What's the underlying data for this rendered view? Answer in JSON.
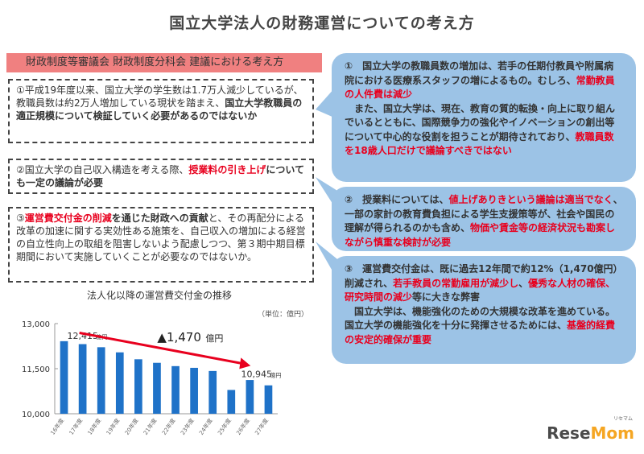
{
  "page_title": "国立大学法人の財務運営についての考え方",
  "left_header": "財政制度等審議会 財政制度分科会 建議における考え方",
  "proposal_1": [
    {
      "t": "①平成19年度以来、国立大学の学生数は1.7万人減少しているが、教職員数は約2万人増加している現状を踏まえ、",
      "s": ""
    },
    {
      "t": "国立大学教職員の適正規模について検証していく必要があるのではないか",
      "s": "b"
    }
  ],
  "proposal_2": [
    {
      "t": "②国立大学の自己収入構造を考える際、",
      "s": ""
    },
    {
      "t": "授業料の引き上げ",
      "s": "r"
    },
    {
      "t": "についても一定の議論が必要",
      "s": "b"
    }
  ],
  "proposal_3": [
    {
      "t": "③",
      "s": ""
    },
    {
      "t": "運営費交付金の削減",
      "s": "r"
    },
    {
      "t": "を通じた財政への貢献",
      "s": "b"
    },
    {
      "t": "と、その再配分による改革の加速に関する実効性ある施策を、自己収入の増加による経営の自立性向上の取組を阻害しないよう配慮しつつ、第３期中期目標期間において実施していくことが必要なのではないか。",
      "s": ""
    }
  ],
  "response_1": [
    {
      "t": "①　国立大学の教職員数の増加は、若手の任期付教員や附属病院における医療系スタッフの増によるもの。むしろ、",
      "s": ""
    },
    {
      "t": "常勤教員の人件費は減少",
      "s": "r"
    },
    {
      "t": "\n　また、国立大学は、現在、教育の質的転換・向上に取り組んでいるとともに、国際競争力の強化やイノベーションの創出等について中心的な役割を担うことが期待されており、",
      "s": ""
    },
    {
      "t": "教職員数を18歳人口だけで議論すべきではない",
      "s": "r"
    }
  ],
  "response_2": [
    {
      "t": "②　授業料については、",
      "s": ""
    },
    {
      "t": "値上げありきという議論は適当でなく",
      "s": "r"
    },
    {
      "t": "、一部の家計の教育費負担による学生支援策等が、社会や国民の理解が得られるのかも含め、",
      "s": ""
    },
    {
      "t": "物価や賃金等の経済状況も勘案しながら慎重な検討が必要",
      "s": "r"
    }
  ],
  "response_3": [
    {
      "t": "③　運営費交付金は、既に過去12年間で約12%（1,470億円）削減され、",
      "s": ""
    },
    {
      "t": "若手教員の常勤雇用が減少し",
      "s": "r"
    },
    {
      "t": "、",
      "s": ""
    },
    {
      "t": "優秀な人材の確保、研究時間の減少",
      "s": "r"
    },
    {
      "t": "等に大きな弊害",
      "s": ""
    },
    {
      "t": "\n　国立大学は、機能強化のための大規模な改革を進めている。国立大学の機能強化を十分に発揮させるためには、",
      "s": ""
    },
    {
      "t": "基盤的経費の安定的確保が重要",
      "s": "r"
    }
  ],
  "chart_data": {
    "type": "bar",
    "title": "法人化以降の運営費交付金の推移",
    "unit_label": "（単位：億円）",
    "categories": [
      "16年度",
      "17年度",
      "18年度",
      "19年度",
      "20年度",
      "21年度",
      "22年度",
      "23年度",
      "24年度",
      "25年度",
      "26年度",
      "27年度"
    ],
    "values": [
      12415,
      12317,
      12214,
      12043,
      11813,
      11695,
      11585,
      11528,
      11423,
      10792,
      11123,
      10945
    ],
    "ylim": [
      10000,
      13000
    ],
    "yticks": [
      10000,
      11500,
      13000
    ],
    "ytick_labels": [
      "10,000",
      "11,500",
      "13,000"
    ],
    "bar_color": "#1f72c8",
    "start_label": "12,415",
    "start_unit": "億円",
    "end_label": "10,945",
    "end_unit": "億円",
    "change_label": "▲1,470",
    "change_unit": "億円",
    "arrow_color": "#e8001e"
  },
  "logo": {
    "text_a": "Rese",
    "text_b": "Mom",
    "ruby": "リセマム",
    "accent": "#f5a623"
  }
}
